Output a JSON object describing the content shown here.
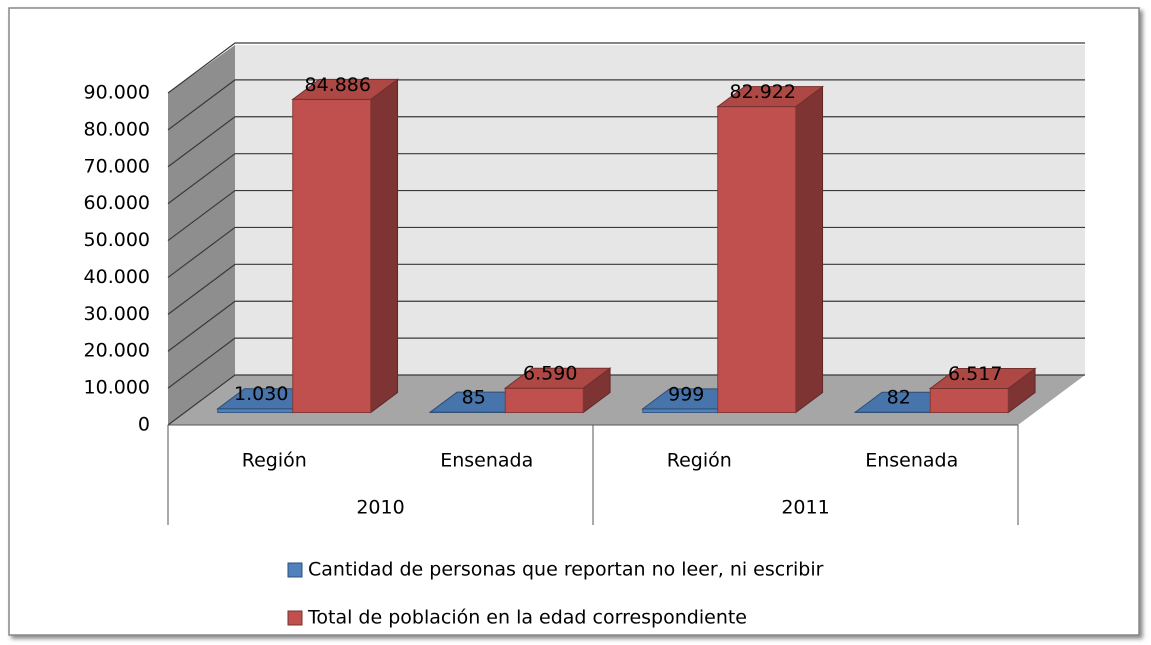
{
  "chart_data": {
    "type": "bar3d",
    "categories": [
      "Región",
      "Ensenada",
      "Región",
      "Ensenada"
    ],
    "category_groups": [
      "2010",
      "2011"
    ],
    "series": [
      {
        "name": "Cantidad de personas que reportan no leer, ni escribir",
        "color": "#4f81bd",
        "values": [
          1030,
          85,
          999,
          82
        ],
        "value_labels": [
          "1.030",
          "85",
          "999",
          "82"
        ]
      },
      {
        "name": "Total de población en la edad correspondiente",
        "color": "#c0504d",
        "values": [
          84886,
          6590,
          82922,
          6517
        ],
        "value_labels": [
          "84.886",
          "6.590",
          "82.922",
          "6.517"
        ]
      }
    ],
    "ylim": [
      0,
      90000
    ],
    "yticks": [
      0,
      {
        "value": 10000,
        "label": "10.000"
      },
      {
        "value": 20000,
        "label": "20.000"
      },
      {
        "value": 30000,
        "label": "30.000"
      },
      {
        "value": 40000,
        "label": "40.000"
      },
      {
        "value": 50000,
        "label": "50.000"
      },
      {
        "value": 60000,
        "label": "60.000"
      },
      {
        "value": 70000,
        "label": "70.000"
      },
      {
        "value": 80000,
        "label": "80.000"
      },
      {
        "value": 90000,
        "label": "90.000"
      }
    ],
    "grid": true
  }
}
